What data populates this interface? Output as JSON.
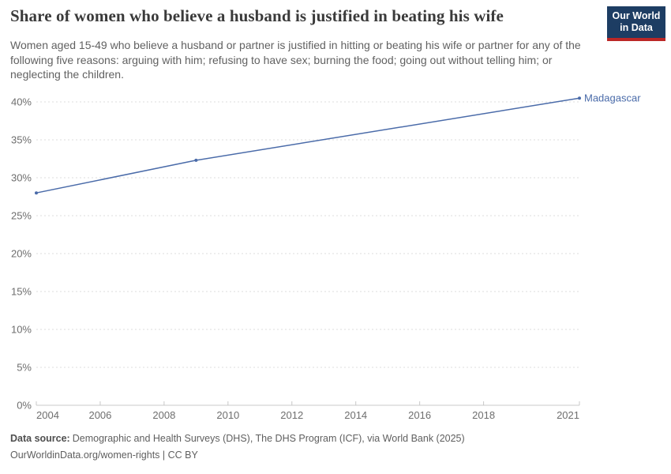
{
  "header": {
    "title": "Share of women who believe a husband is justified in beating his wife",
    "subtitle": "Women aged 15-49 who believe a husband or partner is justified in hitting or beating his wife or partner for any of the following five reasons: arguing with him; refusing to have sex; burning the food; going out without telling him; or neglecting the children.",
    "logo": {
      "line1": "Our World",
      "line2": "in Data"
    }
  },
  "chart_data": {
    "type": "line",
    "title": "Share of women who believe a husband is justified in beating his wife",
    "xlabel": "",
    "ylabel": "",
    "xlim": [
      2004,
      2021
    ],
    "ylim": [
      0,
      40
    ],
    "x_ticks": [
      2004,
      2006,
      2008,
      2010,
      2012,
      2014,
      2016,
      2018,
      2021
    ],
    "y_ticks": [
      0,
      5,
      10,
      15,
      20,
      25,
      30,
      35,
      40
    ],
    "y_tick_suffix": "%",
    "grid": "horizontal-dashed",
    "legend_position": "end-of-line-label",
    "series": [
      {
        "name": "Madagascar",
        "color": "#4a6ba9",
        "points": [
          {
            "x": 2004,
            "y": 28
          },
          {
            "x": 2009,
            "y": 32.3
          },
          {
            "x": 2021,
            "y": 40.5
          }
        ]
      }
    ]
  },
  "footer": {
    "data_source_label": "Data source:",
    "data_source_text": "Demographic and Health Surveys (DHS), The DHS Program (ICF), via World Bank (2025)",
    "attribution": "OurWorldinData.org/women-rights | CC BY"
  },
  "theme": {
    "line_color": "#4a6ba9",
    "logo_background": "#1d3d63",
    "logo_stripe": "#bb2726",
    "grid_color": "#dcdcdc",
    "axis_color": "#c8c8c8",
    "tick_label_color": "#6e6e6e"
  }
}
